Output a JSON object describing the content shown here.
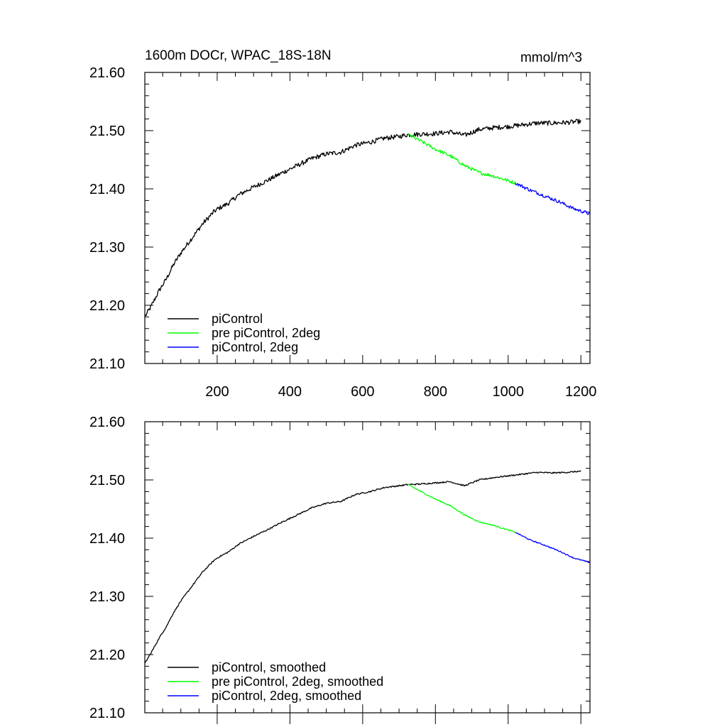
{
  "chart_data": [
    {
      "type": "line",
      "title_left": "1600m DOCr, WPAC_18S-18N",
      "title_right": "mmol/m^3",
      "xlabel": "",
      "ylabel": "",
      "xlim": [
        1,
        1225
      ],
      "ylim": [
        21.1,
        21.6
      ],
      "xticks": [
        200,
        400,
        600,
        800,
        1000,
        1200
      ],
      "xtick_labels": [
        "200",
        "400",
        "600",
        "800",
        "1000",
        "1200"
      ],
      "yticks": [
        21.1,
        21.2,
        21.3,
        21.4,
        21.5,
        21.6
      ],
      "ytick_labels": [
        "21.10",
        "21.20",
        "21.30",
        "21.40",
        "21.50",
        "21.60"
      ],
      "legend_position": "bottom-left",
      "series": [
        {
          "name": "piControl",
          "color": "#000000",
          "noise": 0.004,
          "x": [
            1,
            20,
            40,
            60,
            80,
            100,
            130,
            160,
            190,
            200,
            230,
            260,
            300,
            340,
            380,
            420,
            460,
            500,
            540,
            580,
            620,
            660,
            700,
            725,
            760,
            800,
            840,
            880,
            920,
            960,
            1000,
            1040,
            1080,
            1120,
            1160,
            1200
          ],
          "y": [
            21.18,
            21.2,
            21.225,
            21.245,
            21.27,
            21.29,
            21.315,
            21.34,
            21.36,
            21.365,
            21.375,
            21.39,
            21.403,
            21.415,
            21.428,
            21.44,
            21.452,
            21.46,
            21.463,
            21.475,
            21.48,
            21.487,
            21.49,
            21.493,
            21.494,
            21.495,
            21.498,
            21.492,
            21.502,
            21.505,
            21.507,
            21.51,
            21.513,
            21.513,
            21.514,
            21.516
          ]
        },
        {
          "name": "pre piControl, 2deg",
          "color": "#00ff00",
          "noise": 0.003,
          "x": [
            725,
            760,
            800,
            840,
            880,
            920,
            960,
            1000,
            1020
          ],
          "y": [
            21.493,
            21.482,
            21.468,
            21.457,
            21.44,
            21.428,
            21.422,
            21.414,
            21.41
          ]
        },
        {
          "name": "piControl, 2deg",
          "color": "#0000ff",
          "noise": 0.003,
          "x": [
            1020,
            1060,
            1100,
            1140,
            1180,
            1225
          ],
          "y": [
            21.41,
            21.398,
            21.388,
            21.378,
            21.366,
            21.357
          ]
        }
      ]
    },
    {
      "type": "line",
      "xlabel": "",
      "ylabel": "",
      "xlim": [
        1,
        1225
      ],
      "ylim": [
        21.1,
        21.6
      ],
      "xticks": [
        200,
        400,
        600,
        800,
        1000,
        1200
      ],
      "yticks": [
        21.1,
        21.2,
        21.3,
        21.4,
        21.5,
        21.6
      ],
      "ytick_labels": [
        "21.10",
        "21.20",
        "21.30",
        "21.40",
        "21.50",
        "21.60"
      ],
      "legend_position": "bottom-left",
      "series": [
        {
          "name": "piControl, smoothed",
          "color": "#000000",
          "noise": 0.0012,
          "x": [
            1,
            20,
            40,
            60,
            80,
            100,
            130,
            160,
            190,
            200,
            230,
            260,
            300,
            340,
            380,
            420,
            460,
            500,
            540,
            580,
            620,
            660,
            700,
            725,
            760,
            800,
            840,
            880,
            920,
            960,
            1000,
            1040,
            1080,
            1120,
            1160,
            1200
          ],
          "y": [
            21.185,
            21.205,
            21.228,
            21.248,
            21.272,
            21.292,
            21.317,
            21.342,
            21.361,
            21.366,
            21.376,
            21.39,
            21.403,
            21.415,
            21.428,
            21.44,
            21.452,
            21.46,
            21.463,
            21.475,
            21.48,
            21.487,
            21.49,
            21.492,
            21.493,
            21.495,
            21.497,
            21.49,
            21.5,
            21.504,
            21.507,
            21.51,
            21.513,
            21.512,
            21.513,
            21.515
          ]
        },
        {
          "name": "pre piControl, 2deg, smoothed",
          "color": "#00ff00",
          "noise": 0.001,
          "x": [
            725,
            760,
            800,
            840,
            880,
            920,
            960,
            1000,
            1020
          ],
          "y": [
            21.492,
            21.48,
            21.467,
            21.456,
            21.44,
            21.428,
            21.422,
            21.414,
            21.41
          ]
        },
        {
          "name": "piControl, 2deg, smoothed",
          "color": "#0000ff",
          "noise": 0.001,
          "x": [
            1020,
            1060,
            1100,
            1140,
            1180,
            1225
          ],
          "y": [
            21.41,
            21.397,
            21.388,
            21.378,
            21.366,
            21.358
          ]
        }
      ]
    }
  ]
}
